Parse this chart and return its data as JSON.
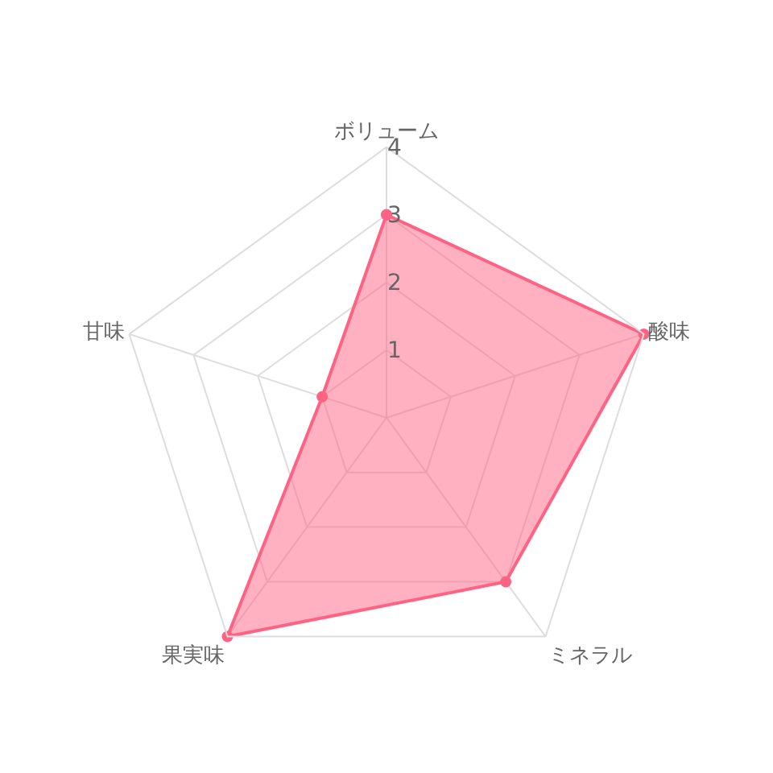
{
  "chart_data": {
    "type": "radar",
    "categories": [
      "ボリューム",
      "酸味",
      "ミネラル",
      "果実味",
      "甘味"
    ],
    "series": [
      {
        "color": "#ff6384",
        "values": [
          3,
          4,
          3,
          4,
          1
        ]
      }
    ],
    "ylim": [
      0,
      4
    ],
    "yticks": [
      1,
      2,
      3,
      4
    ],
    "grid": true,
    "marker": "circle"
  }
}
